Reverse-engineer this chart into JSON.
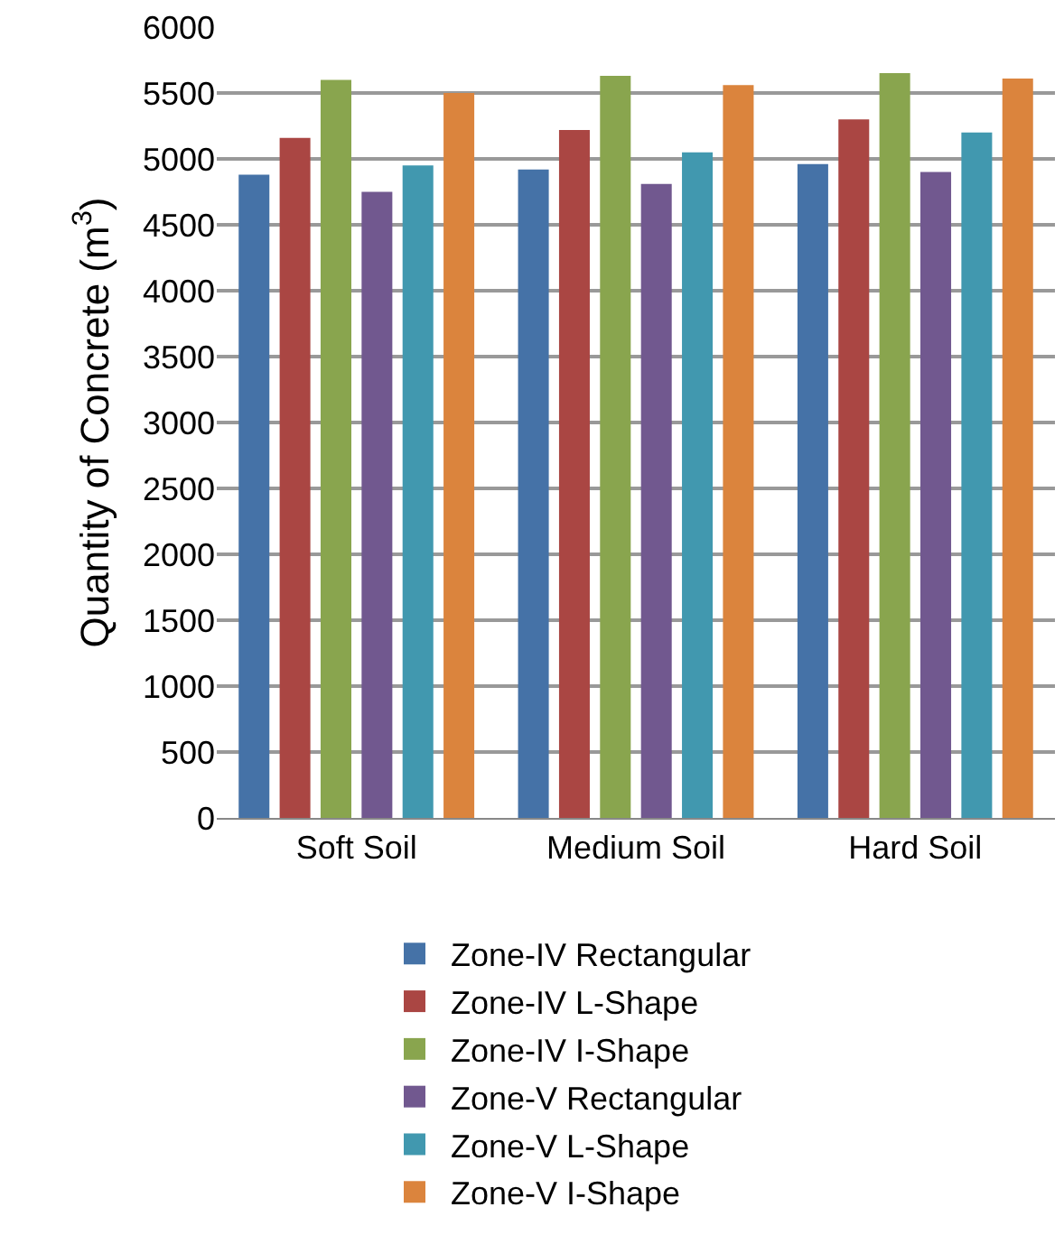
{
  "chart_data": {
    "type": "bar",
    "ylabel": "Quantity of Concrete (m$^{3}$)",
    "categories": [
      "Soft Soil",
      "Medium Soil",
      "Hard Soil"
    ],
    "series": [
      {
        "name": "Zone-IV Rectangular",
        "color": "#4572a7",
        "values": [
          4880,
          4920,
          4960
        ]
      },
      {
        "name": "Zone-IV L-Shape",
        "color": "#aa4643",
        "values": [
          5160,
          5220,
          5300
        ]
      },
      {
        "name": "Zone-IV I-Shape",
        "color": "#89a54e",
        "values": [
          5600,
          5630,
          5650
        ]
      },
      {
        "name": "Zone-V Rectangular",
        "color": "#71588f",
        "values": [
          4750,
          4810,
          4900
        ]
      },
      {
        "name": "Zone-V L-Shape",
        "color": "#4198af",
        "values": [
          4950,
          5050,
          5200
        ]
      },
      {
        "name": "Zone-V I-Shape",
        "color": "#db843d",
        "values": [
          5500,
          5560,
          5610
        ]
      }
    ],
    "ylim": [
      0,
      6000
    ],
    "yticks": [
      0,
      500,
      1000,
      1500,
      2000,
      2500,
      3000,
      3500,
      4000,
      4500,
      5000,
      5500,
      6000
    ],
    "grid": "y",
    "legend": "bottom"
  }
}
